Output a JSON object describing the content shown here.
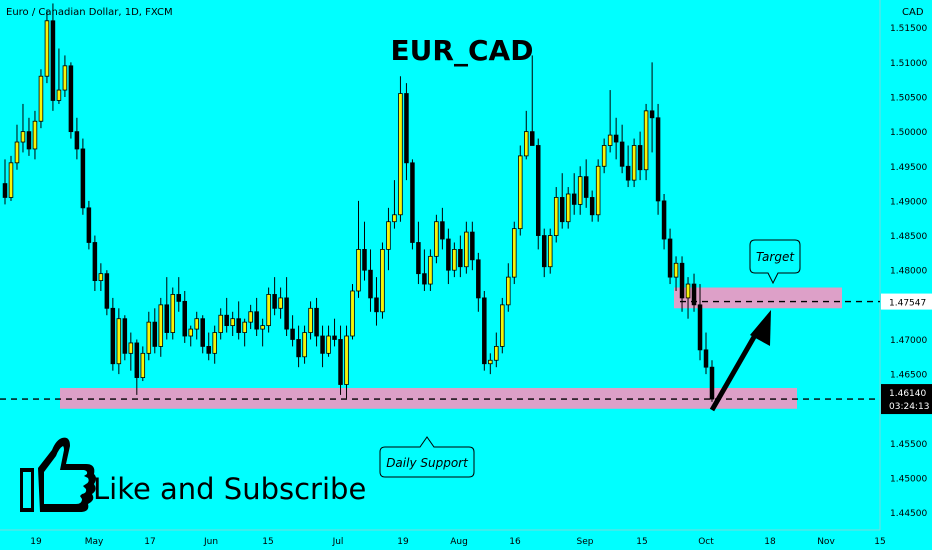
{
  "header": {
    "symbol_title": "Euro / Canadian Dollar, 1D, FXCM",
    "currency": "CAD"
  },
  "chart_data": {
    "type": "candlestick",
    "title": "EUR_CAD",
    "ylim": [
      1.4425,
      1.519
    ],
    "y_ticks": [
      1.515,
      1.51,
      1.505,
      1.5,
      1.495,
      1.49,
      1.485,
      1.48,
      1.47,
      1.465,
      1.455,
      1.45,
      1.445
    ],
    "y_tick_labels": [
      "1.51500",
      "1.51000",
      "1.50500",
      "1.50000",
      "1.49500",
      "1.49000",
      "1.48500",
      "1.48000",
      "1.47000",
      "1.46500",
      "1.45500",
      "1.45000",
      "1.44500"
    ],
    "x_tick_labels": [
      "19",
      "May",
      "17",
      "Jun",
      "15",
      "Jul",
      "19",
      "Aug",
      "16",
      "Sep",
      "15",
      "Oct",
      "18",
      "Nov",
      "15"
    ],
    "colors": {
      "up": "#f5f50a",
      "down": "#000000",
      "zone": "#dda0c8",
      "background": "#00ffff"
    },
    "candles": [
      [
        1.4925,
        1.496,
        1.4895,
        1.4905
      ],
      [
        1.4905,
        1.4965,
        1.49,
        1.4955
      ],
      [
        1.4955,
        1.501,
        1.4945,
        1.4985
      ],
      [
        1.4985,
        1.504,
        1.497,
        1.5
      ],
      [
        1.5,
        1.502,
        1.4965,
        1.4975
      ],
      [
        1.4975,
        1.503,
        1.496,
        1.5015
      ],
      [
        1.5015,
        1.509,
        1.5005,
        1.508
      ],
      [
        1.508,
        1.5175,
        1.507,
        1.516
      ],
      [
        1.516,
        1.5185,
        1.503,
        1.5045
      ],
      [
        1.5045,
        1.512,
        1.504,
        1.506
      ],
      [
        1.506,
        1.511,
        1.505,
        1.5095
      ],
      [
        1.5095,
        1.51,
        1.499,
        1.5
      ],
      [
        1.5,
        1.502,
        1.496,
        1.4975
      ],
      [
        1.4975,
        1.499,
        1.488,
        1.489
      ],
      [
        1.489,
        1.49,
        1.483,
        1.484
      ],
      [
        1.484,
        1.485,
        1.477,
        1.4785
      ],
      [
        1.4785,
        1.481,
        1.477,
        1.4795
      ],
      [
        1.4795,
        1.48,
        1.4735,
        1.4745
      ],
      [
        1.4745,
        1.476,
        1.4655,
        1.4665
      ],
      [
        1.4665,
        1.4745,
        1.465,
        1.473
      ],
      [
        1.473,
        1.4735,
        1.467,
        1.468
      ],
      [
        1.468,
        1.471,
        1.4655,
        1.4695
      ],
      [
        1.4695,
        1.47,
        1.462,
        1.4645
      ],
      [
        1.4645,
        1.469,
        1.464,
        1.468
      ],
      [
        1.468,
        1.474,
        1.467,
        1.4725
      ],
      [
        1.4725,
        1.4745,
        1.468,
        1.469
      ],
      [
        1.469,
        1.476,
        1.4675,
        1.475
      ],
      [
        1.475,
        1.479,
        1.47,
        1.471
      ],
      [
        1.471,
        1.4775,
        1.47,
        1.4765
      ],
      [
        1.4765,
        1.479,
        1.474,
        1.4755
      ],
      [
        1.4755,
        1.477,
        1.4695,
        1.4705
      ],
      [
        1.4705,
        1.472,
        1.469,
        1.4715
      ],
      [
        1.4715,
        1.474,
        1.47,
        1.473
      ],
      [
        1.473,
        1.4735,
        1.468,
        1.469
      ],
      [
        1.469,
        1.471,
        1.467,
        1.468
      ],
      [
        1.468,
        1.472,
        1.4665,
        1.471
      ],
      [
        1.471,
        1.4745,
        1.47,
        1.4735
      ],
      [
        1.4735,
        1.476,
        1.471,
        1.472
      ],
      [
        1.472,
        1.474,
        1.4705,
        1.473
      ],
      [
        1.473,
        1.4755,
        1.47,
        1.471
      ],
      [
        1.471,
        1.473,
        1.469,
        1.4725
      ],
      [
        1.4725,
        1.475,
        1.4715,
        1.474
      ],
      [
        1.474,
        1.476,
        1.4705,
        1.4715
      ],
      [
        1.4715,
        1.473,
        1.469,
        1.472
      ],
      [
        1.472,
        1.4775,
        1.471,
        1.4765
      ],
      [
        1.4765,
        1.479,
        1.4735,
        1.4745
      ],
      [
        1.4745,
        1.4775,
        1.473,
        1.476
      ],
      [
        1.476,
        1.479,
        1.4705,
        1.4715
      ],
      [
        1.4715,
        1.4735,
        1.469,
        1.47
      ],
      [
        1.47,
        1.472,
        1.466,
        1.4675
      ],
      [
        1.4675,
        1.472,
        1.4665,
        1.471
      ],
      [
        1.471,
        1.4755,
        1.47,
        1.4745
      ],
      [
        1.4745,
        1.476,
        1.469,
        1.4705
      ],
      [
        1.4705,
        1.472,
        1.466,
        1.468
      ],
      [
        1.468,
        1.472,
        1.4675,
        1.4705
      ],
      [
        1.4705,
        1.473,
        1.469,
        1.47
      ],
      [
        1.47,
        1.472,
        1.462,
        1.4635
      ],
      [
        1.4635,
        1.472,
        1.4615,
        1.4705
      ],
      [
        1.4705,
        1.478,
        1.47,
        1.477
      ],
      [
        1.477,
        1.49,
        1.476,
        1.483
      ],
      [
        1.483,
        1.487,
        1.4785,
        1.48
      ],
      [
        1.48,
        1.483,
        1.474,
        1.476
      ],
      [
        1.476,
        1.479,
        1.472,
        1.474
      ],
      [
        1.474,
        1.484,
        1.473,
        1.483
      ],
      [
        1.483,
        1.489,
        1.48,
        1.487
      ],
      [
        1.487,
        1.493,
        1.486,
        1.488
      ],
      [
        1.488,
        1.508,
        1.487,
        1.5055
      ],
      [
        1.5055,
        1.507,
        1.493,
        1.4955
      ],
      [
        1.4955,
        1.496,
        1.483,
        1.484
      ],
      [
        1.484,
        1.487,
        1.478,
        1.4795
      ],
      [
        1.4795,
        1.483,
        1.477,
        1.478
      ],
      [
        1.478,
        1.483,
        1.477,
        1.482
      ],
      [
        1.482,
        1.488,
        1.481,
        1.487
      ],
      [
        1.487,
        1.489,
        1.483,
        1.4845
      ],
      [
        1.4845,
        1.486,
        1.478,
        1.48
      ],
      [
        1.48,
        1.484,
        1.479,
        1.483
      ],
      [
        1.483,
        1.485,
        1.479,
        1.4805
      ],
      [
        1.4805,
        1.487,
        1.4795,
        1.4855
      ],
      [
        1.4855,
        1.487,
        1.48,
        1.4815
      ],
      [
        1.4815,
        1.4825,
        1.474,
        1.476
      ],
      [
        1.476,
        1.477,
        1.4655,
        1.4665
      ],
      [
        1.4665,
        1.468,
        1.465,
        1.467
      ],
      [
        1.467,
        1.471,
        1.466,
        1.469
      ],
      [
        1.469,
        1.476,
        1.468,
        1.475
      ],
      [
        1.475,
        1.481,
        1.474,
        1.479
      ],
      [
        1.479,
        1.487,
        1.478,
        1.486
      ],
      [
        1.486,
        1.498,
        1.485,
        1.4965
      ],
      [
        1.4965,
        1.503,
        1.496,
        1.5
      ],
      [
        1.5,
        1.511,
        1.498,
        1.498
      ],
      [
        1.498,
        1.499,
        1.483,
        1.485
      ],
      [
        1.485,
        1.486,
        1.479,
        1.4805
      ],
      [
        1.4805,
        1.486,
        1.4795,
        1.485
      ],
      [
        1.485,
        1.492,
        1.484,
        1.4905
      ],
      [
        1.4905,
        1.494,
        1.486,
        1.487
      ],
      [
        1.487,
        1.492,
        1.486,
        1.491
      ],
      [
        1.491,
        1.494,
        1.488,
        1.4895
      ],
      [
        1.4895,
        1.495,
        1.488,
        1.4935
      ],
      [
        1.4935,
        1.496,
        1.489,
        1.4905
      ],
      [
        1.4905,
        1.4915,
        1.487,
        1.488
      ],
      [
        1.488,
        1.496,
        1.487,
        1.495
      ],
      [
        1.495,
        1.499,
        1.494,
        1.498
      ],
      [
        1.498,
        1.506,
        1.497,
        1.4995
      ],
      [
        1.4995,
        1.502,
        1.496,
        1.4985
      ],
      [
        1.4985,
        1.501,
        1.494,
        1.495
      ],
      [
        1.495,
        1.498,
        1.492,
        1.493
      ],
      [
        1.493,
        1.499,
        1.492,
        1.498
      ],
      [
        1.498,
        1.5,
        1.493,
        1.4945
      ],
      [
        1.4945,
        1.504,
        1.493,
        1.503
      ],
      [
        1.503,
        1.51,
        1.497,
        1.502
      ],
      [
        1.502,
        1.504,
        1.488,
        1.49
      ],
      [
        1.49,
        1.491,
        1.483,
        1.4845
      ],
      [
        1.4845,
        1.486,
        1.478,
        1.479
      ],
      [
        1.479,
        1.482,
        1.477,
        1.481
      ],
      [
        1.481,
        1.482,
        1.474,
        1.476
      ],
      [
        1.476,
        1.479,
        1.473,
        1.478
      ],
      [
        1.478,
        1.4795,
        1.474,
        1.475
      ],
      [
        1.475,
        1.478,
        1.467,
        1.4685
      ],
      [
        1.4685,
        1.471,
        1.465,
        1.466
      ],
      [
        1.466,
        1.467,
        1.461,
        1.4614
      ]
    ],
    "zones": [
      {
        "name": "support",
        "from": 1.46,
        "to": 1.463
      },
      {
        "name": "target",
        "from": 1.4745,
        "to": 1.4775
      }
    ],
    "support_line": 1.4614,
    "target_line": 1.47547,
    "price_label": "1.47547",
    "last_price_label": "1.46140",
    "countdown_label": "03:24:13",
    "annotations": {
      "target": "Target",
      "support": "Daily Support"
    }
  },
  "promo": {
    "text": "Like and Subscribe"
  },
  "icons": {
    "thumb": "thumbs-up-icon",
    "arrow": "arrow-up-right-icon"
  }
}
